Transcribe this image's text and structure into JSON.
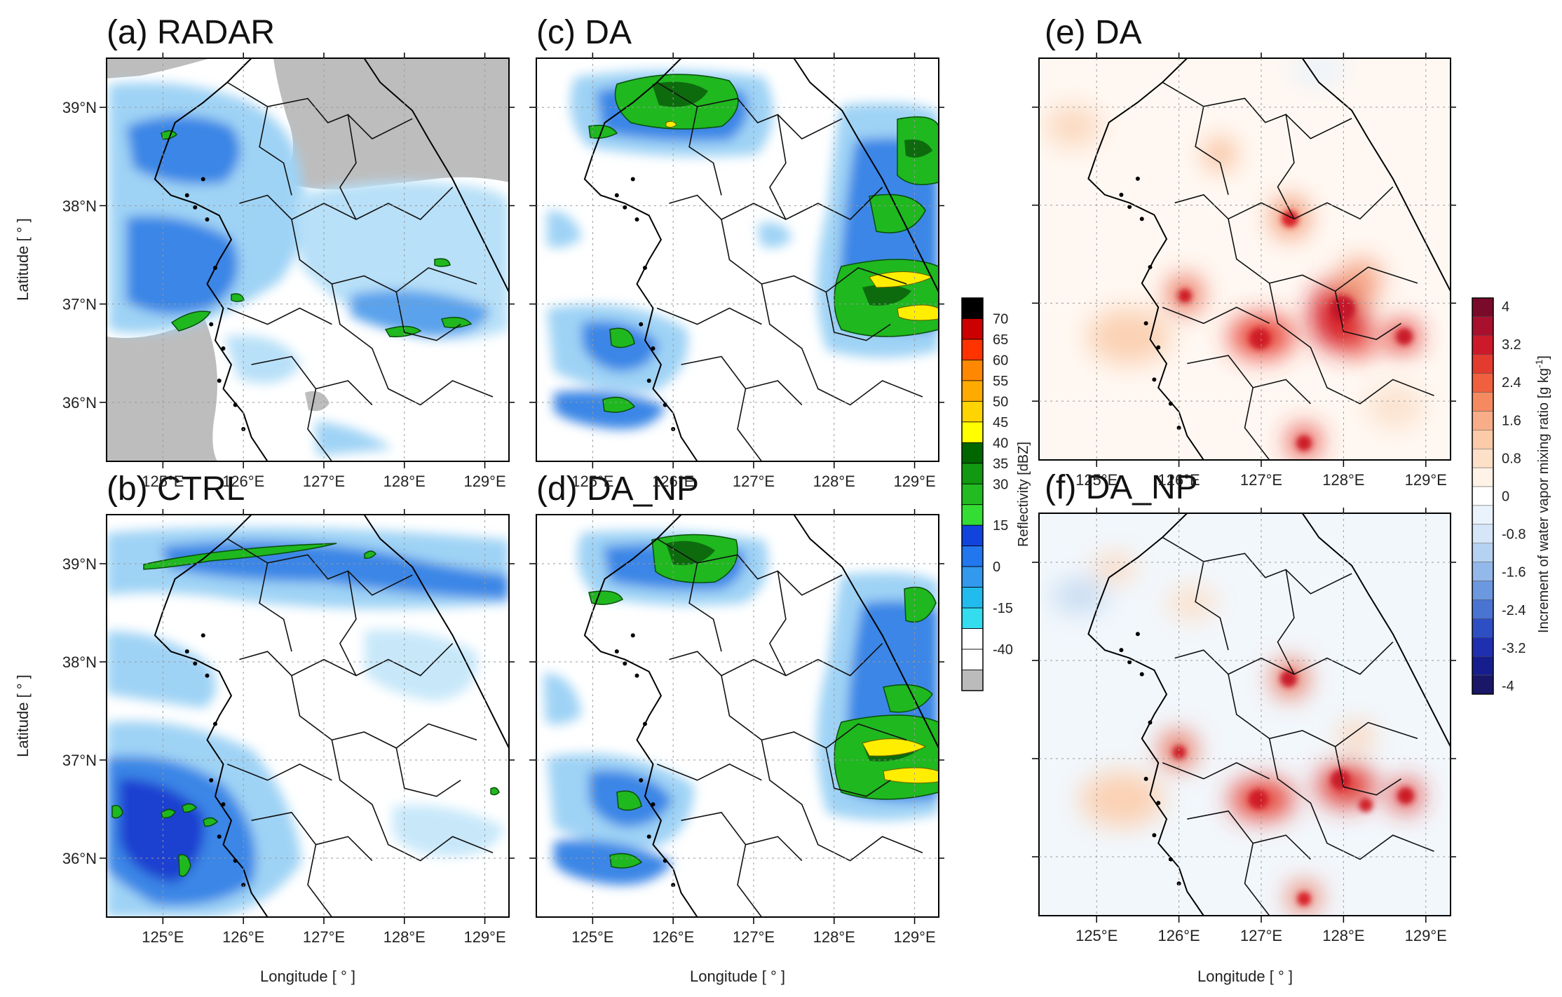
{
  "chart_data": [
    {
      "type": "heatmap",
      "title": "(a) RADAR",
      "variable": "Reflectivity",
      "xlabel": "",
      "ylabel": "Latitude [ ° ]",
      "x_ticks": [
        "125°E",
        "126°E",
        "127°E",
        "128°E",
        "129°E"
      ],
      "y_ticks": [
        "39°N",
        "38°N",
        "37°N",
        "36°N"
      ],
      "xlim": [
        124.3,
        129.3
      ],
      "ylim": [
        35.4,
        39.5
      ]
    },
    {
      "type": "heatmap",
      "title": "(b) CTRL",
      "variable": "Reflectivity",
      "xlabel": "Longitude [ ° ]",
      "ylabel": "Latitude [ ° ]",
      "x_ticks": [
        "125°E",
        "126°E",
        "127°E",
        "128°E",
        "129°E"
      ],
      "y_ticks": [
        "39°N",
        "38°N",
        "37°N",
        "36°N"
      ],
      "xlim": [
        124.3,
        129.3
      ],
      "ylim": [
        35.4,
        39.5
      ]
    },
    {
      "type": "heatmap",
      "title": "(c) DA",
      "variable": "Reflectivity",
      "xlabel": "",
      "ylabel": "",
      "x_ticks": [
        "125°E",
        "126°E",
        "127°E",
        "128°E",
        "129°E"
      ],
      "y_ticks": [],
      "xlim": [
        124.3,
        129.3
      ],
      "ylim": [
        35.4,
        39.5
      ]
    },
    {
      "type": "heatmap",
      "title": "(d) DA_NP",
      "variable": "Reflectivity",
      "xlabel": "Longitude [ ° ]",
      "ylabel": "",
      "x_ticks": [
        "125°E",
        "126°E",
        "127°E",
        "128°E",
        "129°E"
      ],
      "y_ticks": [],
      "xlim": [
        124.3,
        129.3
      ],
      "ylim": [
        35.4,
        39.5
      ]
    },
    {
      "type": "heatmap",
      "title": "(e) DA",
      "variable": "Increment of water vapor mixing ratio",
      "xlabel": "",
      "ylabel": "",
      "x_ticks": [
        "125°E",
        "126°E",
        "127°E",
        "128°E",
        "129°E"
      ],
      "y_ticks": [],
      "xlim": [
        124.3,
        129.3
      ],
      "ylim": [
        35.4,
        39.5
      ]
    },
    {
      "type": "heatmap",
      "title": "(f) DA_NP",
      "variable": "Increment of water vapor mixing ratio",
      "xlabel": "Longitude [ ° ]",
      "ylabel": "",
      "x_ticks": [
        "125°E",
        "126°E",
        "127°E",
        "128°E",
        "129°E"
      ],
      "y_ticks": [],
      "xlim": [
        124.3,
        129.3
      ],
      "ylim": [
        35.4,
        39.5
      ]
    }
  ],
  "colorbar_reflectivity": {
    "label": "Reflectivity [dBZ]",
    "levels": [
      "70",
      "65",
      "60",
      "55",
      "50",
      "45",
      "40",
      "35",
      "30",
      "15",
      "0",
      "-15",
      "-40"
    ],
    "colors": [
      "#000000",
      "#cc0000",
      "#ff3300",
      "#ff8800",
      "#ffaa00",
      "#ffd400",
      "#ffff00",
      "#006600",
      "#119911",
      "#22bb22",
      "#33dd33",
      "#1144dd",
      "#2277ee",
      "#3399ee",
      "#22bbee",
      "#33ddee",
      "#ffffff",
      "#ffffff",
      "#bbbbbb"
    ]
  },
  "colorbar_increment": {
    "label": "Increment of water vapor mixing ratio [g kg",
    "label_sup": "-1",
    "label_end": "]",
    "levels": [
      "4",
      "3.2",
      "2.4",
      "1.6",
      "0.8",
      "0",
      "-0.8",
      "-1.6",
      "-2.4",
      "-3.2",
      "-4"
    ],
    "colors": [
      "#7a0a2a",
      "#a8102e",
      "#cc1a2a",
      "#e33b2e",
      "#f0603e",
      "#f58a60",
      "#f8ac88",
      "#fbcaa8",
      "#fde0c8",
      "#fff2e6",
      "#ffffff",
      "#eaf3fc",
      "#d5e6f8",
      "#b6d2f2",
      "#93b8ea",
      "#6c98e0",
      "#4a74d2",
      "#2e4ec4",
      "#1e2fb0",
      "#161e8e",
      "#1a1668"
    ]
  },
  "colors": {
    "radar_missing": "#bdbdbd",
    "light_blue": "#9fd3f5",
    "mid_blue": "#3a86e6",
    "dark_blue": "#1c3fd0",
    "green": "#1fb81f",
    "dark_green": "#0d6b0d",
    "yellow": "#ffee00"
  }
}
